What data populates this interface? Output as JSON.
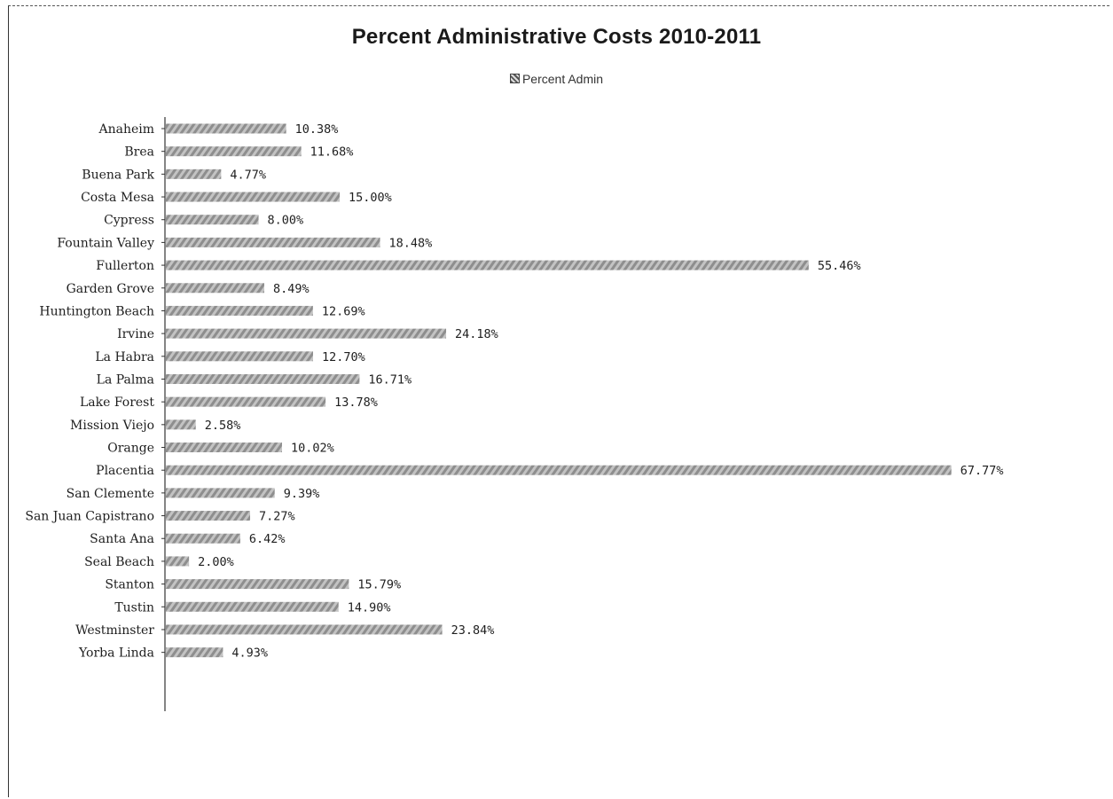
{
  "chart_data": {
    "type": "bar",
    "orientation": "horizontal",
    "title": "Percent Administrative Costs 2010-2011",
    "legend": "top",
    "categories": [
      "Anaheim",
      "Brea",
      "Buena Park",
      "Costa Mesa",
      "Cypress",
      "Fountain Valley",
      "Fullerton",
      "Garden Grove",
      "Huntington Beach",
      "Irvine",
      "La Habra",
      "La Palma",
      "Lake Forest",
      "Mission Viejo",
      "Orange",
      "Placentia",
      "San Clemente",
      "San Juan Capistrano",
      "Santa Ana",
      "Seal Beach",
      "Stanton",
      "Tustin",
      "Westminster",
      "Yorba Linda"
    ],
    "series": [
      {
        "name": "Percent Admin",
        "values": [
          10.38,
          11.68,
          4.77,
          15.0,
          8.0,
          18.48,
          55.46,
          8.49,
          12.69,
          24.18,
          12.7,
          16.71,
          13.78,
          2.58,
          10.02,
          67.77,
          9.39,
          7.27,
          6.42,
          2.0,
          15.79,
          14.9,
          23.84,
          4.93
        ],
        "labels": [
          "10.38%",
          "11.68%",
          "4.77%",
          "15.00%",
          "8.00%",
          "18.48%",
          "55.46%",
          "8.49%",
          "12.69%",
          "24.18%",
          "12.70%",
          "16.71%",
          "13.78%",
          "2.58%",
          "10.02%",
          "67.77%",
          "9.39%",
          "7.27%",
          "6.42%",
          "2.00%",
          "15.79%",
          "14.90%",
          "23.84%",
          "4.93%"
        ]
      }
    ],
    "xlim": [
      0,
      70
    ],
    "grid": false,
    "colors": {
      "bar": "#8a8a8a",
      "axis": "#333333"
    }
  }
}
